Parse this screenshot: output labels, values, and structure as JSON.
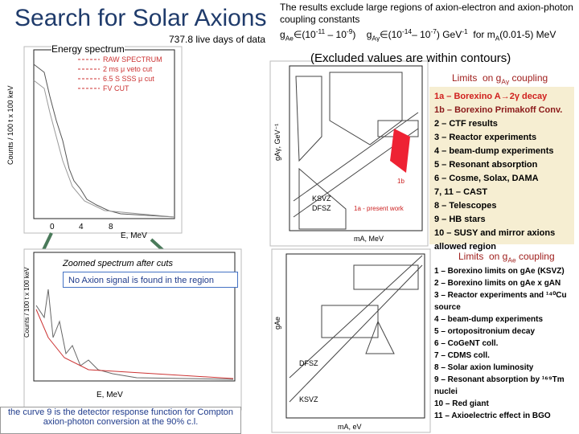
{
  "header": {
    "title": "Search for Solar Axions",
    "subtitle": "737.8 live days of data"
  },
  "results": {
    "text": "The results exclude large regions of axion-electron and axion-photon coupling constants",
    "formula": [
      {
        "text": "g",
        "style": "normal"
      },
      {
        "text": "Ae",
        "style": "sub"
      },
      {
        "text": "∈(10",
        "style": "normal"
      },
      {
        "text": "-11",
        "style": "sup"
      },
      {
        "text": " – 10",
        "style": "normal"
      },
      {
        "text": "-9",
        "style": "sup"
      },
      {
        "text": ")    g",
        "style": "normal"
      },
      {
        "text": "Aγ",
        "style": "sub"
      },
      {
        "text": "∈(10",
        "style": "normal"
      },
      {
        "text": "-14",
        "style": "sup"
      },
      {
        "text": "– 10",
        "style": "normal"
      },
      {
        "text": "-7",
        "style": "sup"
      },
      {
        "text": ") GeV",
        "style": "normal"
      },
      {
        "text": "-1",
        "style": "sup"
      },
      {
        "text": "  for m",
        "style": "normal"
      },
      {
        "text": "A",
        "style": "sub"
      },
      {
        "text": "(0.01-5) MeV",
        "style": "normal"
      }
    ],
    "note": "(Excluded values are within contours)"
  },
  "spectrum": {
    "label": "Energy spectrum",
    "legend": [
      "RAW SPECTRUM",
      "2 ms μ veto cut",
      "6.5 S SSS μ cut",
      "FV CUT"
    ],
    "x_label": "E, MeV",
    "y_label": "Counts / 100 t x 100 keV",
    "x_ticks": [
      "0",
      "4",
      "8"
    ]
  },
  "zoom": {
    "label": "Zoomed spectrum after cuts",
    "finding": "No Axion signal is found in the region",
    "x_label": "E, MeV",
    "y_label": "Counts / 100 t x 100 keV",
    "footnote": "the curve 9 is the detector response function for Compton axion-photon conversion at the 90% c.l."
  },
  "photon_panel": {
    "title": [
      {
        "text": "Limits  on g",
        "style": "normal"
      },
      {
        "text": "Aγ",
        "style": "sub"
      },
      {
        "text": " coupling",
        "style": "normal"
      }
    ],
    "plot_labels": {
      "x_label": "mA, MeV",
      "y_label": "gAγ, GeV⁻¹",
      "ksvz": "KSVZ",
      "dfsz": "DFSZ",
      "present": "1a - present work",
      "b": "1b"
    },
    "items": [
      "1a – Borexino A→2γ decay",
      "1b – Borexino Primakoff Conv.",
      "2 – CTF results",
      "3 – Reactor experiments",
      "4 – beam-dump experiments",
      "5 – Resonant absorption",
      "6 – Cosme, Solax, DAMA",
      "7, 11 – CAST",
      "8 – Telescopes",
      "9 – HB stars",
      "10 – SUSY and mirror axions allowed region"
    ]
  },
  "electron_panel": {
    "title": [
      {
        "text": "Limits  on g",
        "style": "normal"
      },
      {
        "text": "Ae",
        "style": "sub"
      },
      {
        "text": " coupling",
        "style": "normal"
      }
    ],
    "plot_labels": {
      "x_label": "mA, eV",
      "y_label": "gAe",
      "ksvz": "KSVZ",
      "dfsz": "DFSZ"
    },
    "items": [
      "1 – Borexino limits on gAe (KSVZ)",
      "2 – Borexino limits on gAe x gAN",
      "3 – Reactor experiments and ¹⁴⁰Cu source",
      "4 – beam-dump experiments",
      "5 – ortopositronium decay",
      "6 – CoGeNT coll.",
      "7 – CDMS coll.",
      "8 – Solar axion luminosity",
      "9 – Resonant absorption by ¹⁶⁹Tm nuclei",
      "10 – Red giant",
      "11 – Axioelectric effect in BGO"
    ]
  }
}
